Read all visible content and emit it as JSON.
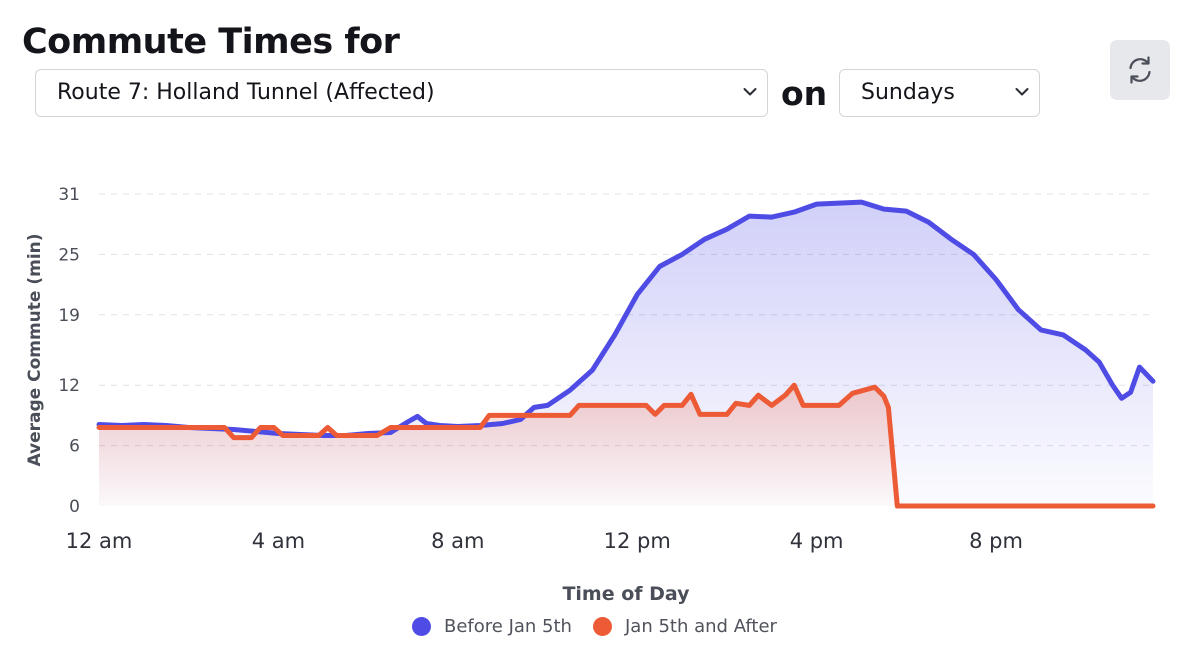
{
  "header": {
    "title": "Commute Times for",
    "on_label": "on",
    "route_select_value": "Route 7: Holland Tunnel (Affected)",
    "day_select_value": "Sundays",
    "refresh_icon": "refresh-icon",
    "chevron_icon": "chevron-down-icon"
  },
  "chart_data": {
    "type": "area",
    "title": "",
    "xlabel": "Time of Day",
    "ylabel": "Average Commute (min)",
    "x_unit": "hours",
    "xlim": [
      0,
      23.5
    ],
    "ylim": [
      0,
      31
    ],
    "y_ticks": [
      0,
      6,
      12,
      19,
      25,
      31
    ],
    "x_ticks": [
      {
        "value": 0,
        "label": "12 am"
      },
      {
        "value": 4,
        "label": "4 am"
      },
      {
        "value": 8,
        "label": "8 am"
      },
      {
        "value": 12,
        "label": "12 pm"
      },
      {
        "value": 16,
        "label": "4 pm"
      },
      {
        "value": 20,
        "label": "8 pm"
      }
    ],
    "grid": true,
    "legend_position": "bottom",
    "series": [
      {
        "name": "Before Jan 5th",
        "color": "#4f4ce6",
        "points": [
          [
            0,
            8.1
          ],
          [
            0.5,
            8.0
          ],
          [
            1,
            8.1
          ],
          [
            1.5,
            8.0
          ],
          [
            2,
            7.8
          ],
          [
            2.5,
            7.7
          ],
          [
            3,
            7.6
          ],
          [
            3.5,
            7.4
          ],
          [
            4,
            7.2
          ],
          [
            4.5,
            7.1
          ],
          [
            5,
            7.0
          ],
          [
            5.5,
            7.0
          ],
          [
            6,
            7.2
          ],
          [
            6.5,
            7.3
          ],
          [
            6.9,
            8.4
          ],
          [
            7.1,
            8.9
          ],
          [
            7.3,
            8.2
          ],
          [
            7.6,
            8.0
          ],
          [
            8,
            7.9
          ],
          [
            8.5,
            8.0
          ],
          [
            9,
            8.2
          ],
          [
            9.4,
            8.6
          ],
          [
            9.7,
            9.8
          ],
          [
            10,
            10.0
          ],
          [
            10.5,
            11.5
          ],
          [
            11,
            13.5
          ],
          [
            11.5,
            17.0
          ],
          [
            12,
            21.0
          ],
          [
            12.5,
            23.8
          ],
          [
            13,
            25.0
          ],
          [
            13.5,
            26.5
          ],
          [
            14,
            27.5
          ],
          [
            14.5,
            28.8
          ],
          [
            15,
            28.7
          ],
          [
            15.5,
            29.2
          ],
          [
            16,
            30.0
          ],
          [
            16.5,
            30.1
          ],
          [
            17,
            30.2
          ],
          [
            17.5,
            29.5
          ],
          [
            18,
            29.3
          ],
          [
            18.5,
            28.2
          ],
          [
            19,
            26.5
          ],
          [
            19.5,
            25.0
          ],
          [
            20,
            22.5
          ],
          [
            20.5,
            19.5
          ],
          [
            21,
            17.5
          ],
          [
            21.5,
            17.0
          ],
          [
            22,
            15.5
          ],
          [
            22.3,
            14.3
          ],
          [
            22.6,
            12.0
          ],
          [
            22.8,
            10.7
          ],
          [
            23.0,
            11.3
          ],
          [
            23.2,
            13.8
          ],
          [
            23.5,
            12.4
          ]
        ]
      },
      {
        "name": "Jan 5th and After",
        "color": "#ec5b36",
        "points": [
          [
            0,
            7.8
          ],
          [
            2.8,
            7.8
          ],
          [
            3,
            6.8
          ],
          [
            3.4,
            6.8
          ],
          [
            3.6,
            7.8
          ],
          [
            3.9,
            7.8
          ],
          [
            4.1,
            7.0
          ],
          [
            4.9,
            7.0
          ],
          [
            5.1,
            7.8
          ],
          [
            5.3,
            7.0
          ],
          [
            6.2,
            7.0
          ],
          [
            6.5,
            7.8
          ],
          [
            8.5,
            7.8
          ],
          [
            8.7,
            9.0
          ],
          [
            10.5,
            9.0
          ],
          [
            10.7,
            10.0
          ],
          [
            12.2,
            10.0
          ],
          [
            12.4,
            9.1
          ],
          [
            12.6,
            10.0
          ],
          [
            13,
            10.0
          ],
          [
            13.2,
            11.1
          ],
          [
            13.4,
            9.1
          ],
          [
            14,
            9.1
          ],
          [
            14.2,
            10.2
          ],
          [
            14.5,
            10.0
          ],
          [
            14.7,
            11.0
          ],
          [
            15,
            10.0
          ],
          [
            15.3,
            11.0
          ],
          [
            15.5,
            12.0
          ],
          [
            15.7,
            10.0
          ],
          [
            16.5,
            10.0
          ],
          [
            16.8,
            11.2
          ],
          [
            17.3,
            11.8
          ],
          [
            17.5,
            10.9
          ],
          [
            17.6,
            9.8
          ],
          [
            17.8,
            0
          ],
          [
            23.5,
            0
          ]
        ]
      }
    ]
  }
}
